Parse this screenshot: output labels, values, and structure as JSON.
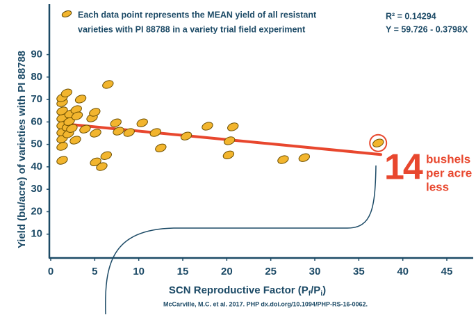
{
  "chart_data": {
    "type": "scatter",
    "legend_lines": [
      "Each data point represents the MEAN yield of all resistant",
      "varieties with PI 88788 in a variety trial field experiment"
    ],
    "r2_label": "R² = 0.14294",
    "equation_label": "Y = 59.726 - 0.3798X",
    "xlabel_parts": [
      "SCN Reproductive Factor (P",
      "f",
      "/P",
      "i",
      ")"
    ],
    "ylabel": "Yield (bu/acre) of varieties with PI 88788",
    "source": "McCarville, M.C. et al. 2017. PHP dx.doi.org/10.1094/PHP-RS-16-0062.",
    "annotation_number": "14",
    "annotation_lines": [
      "bushels",
      "per acre",
      "less"
    ],
    "color": "#f2b52e",
    "trend_color": "#e8472e",
    "trendline": {
      "x": [
        2.5,
        37.5
      ],
      "intercept": 59.726,
      "slope": -0.3798
    },
    "xlim": [
      0,
      48
    ],
    "ylim": [
      0,
      110
    ],
    "xticks": [
      0,
      5,
      10,
      15,
      20,
      25,
      30,
      35,
      40,
      45
    ],
    "yticks": [
      10,
      20,
      30,
      40,
      50,
      60,
      70,
      80,
      90
    ],
    "x": [
      1.3,
      1.3,
      1.3,
      1.3,
      1.3,
      1.3,
      1.3,
      1.3,
      1.3,
      1.8,
      1.9,
      2.0,
      2.1,
      2.2,
      2.4,
      2.8,
      2.9,
      3.0,
      3.4,
      3.9,
      4.7,
      5.0,
      5.1,
      5.1,
      5.8,
      6.3,
      6.5,
      7.4,
      7.7,
      8.9,
      10.4,
      11.9,
      12.5,
      15.4,
      17.8,
      20.2,
      20.3,
      20.7,
      26.4,
      28.8,
      37.2
    ],
    "values": [
      42.9,
      49.1,
      52.5,
      55.6,
      58.7,
      61.8,
      64.9,
      68.6,
      70.8,
      72.9,
      57.8,
      54.7,
      60.2,
      63.6,
      57.1,
      51.9,
      65.5,
      62.7,
      70.2,
      56.8,
      61.8,
      64.3,
      55.0,
      42.2,
      40.1,
      45.0,
      76.7,
      59.6,
      55.9,
      55.3,
      59.6,
      55.3,
      48.4,
      53.7,
      58.1,
      45.3,
      51.6,
      57.8,
      43.2,
      44.1,
      50.6
    ]
  }
}
